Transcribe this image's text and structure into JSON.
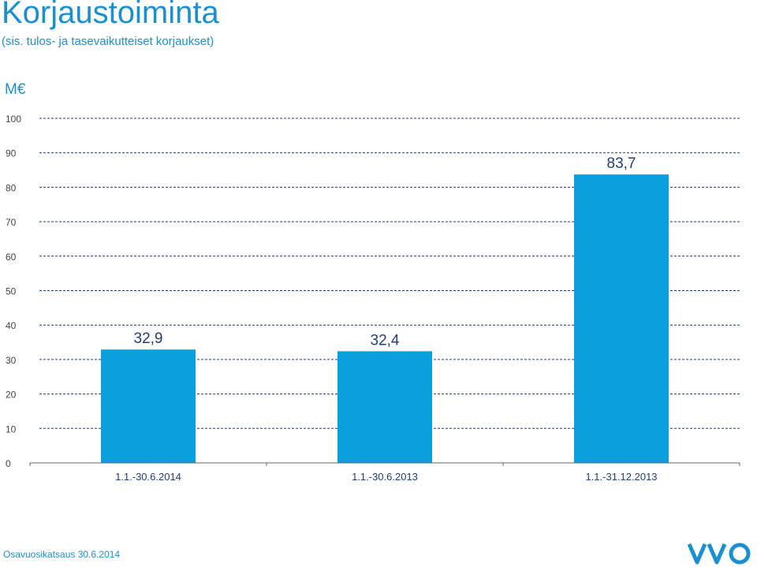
{
  "title": "Korjaustoiminta",
  "subtitle": "(sis. tulos- ja tasevaikutteiset korjaukset)",
  "footer": "Osavuosikatsaus 30.6.2014",
  "logo_text": "VVO",
  "colors": {
    "accent": "#1a8fd1",
    "bar": "#0aa0dd",
    "grid": "#1f3d7a",
    "axis_text": "#444444"
  },
  "chart_data": {
    "type": "bar",
    "unit_label": "M€",
    "categories": [
      "1.1.-30.6.2014",
      "1.1.-30.6.2013",
      "1.1.-31.12.2013"
    ],
    "values": [
      32.9,
      32.4,
      83.7
    ],
    "value_labels": [
      "32,9",
      "32,4",
      "83,7"
    ],
    "y_ticks": [
      "0",
      "10",
      "20",
      "30",
      "40",
      "50",
      "60",
      "70",
      "80",
      "90",
      "100"
    ],
    "ylim": [
      0,
      100
    ],
    "grid": true
  }
}
